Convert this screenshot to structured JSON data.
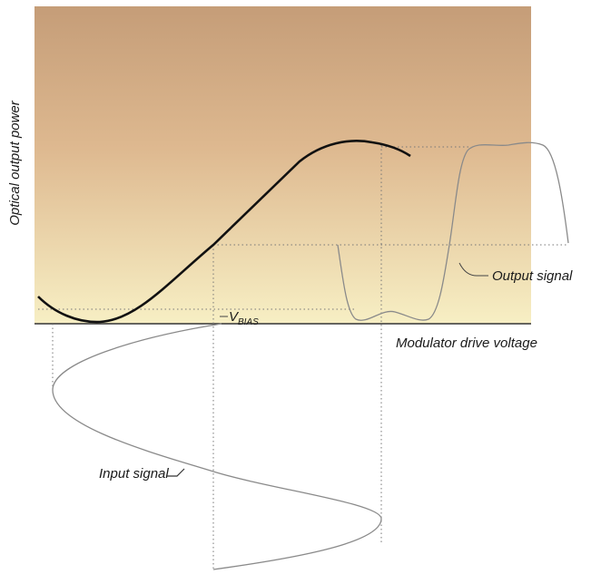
{
  "labels": {
    "y_axis": "Optical output power",
    "x_axis": "Modulator drive voltage",
    "output": "Output signal",
    "input": "Input signal",
    "bias": {
      "main": "V",
      "sub": "BIAS"
    }
  }
}
